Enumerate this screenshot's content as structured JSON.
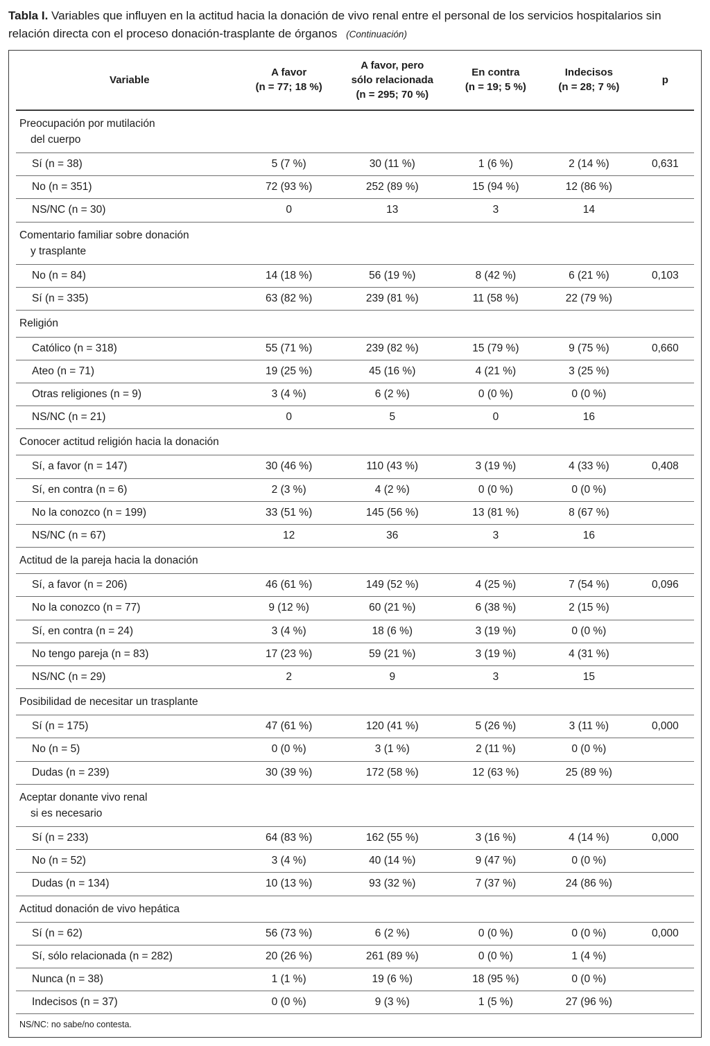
{
  "page": {
    "title_label": "Tabla I.",
    "title_text": "Variables que influyen en la actitud hacia la donación de vivo renal entre el personal de los servicios hospitalarios sin relación directa con el proceso donación-trasplante de órganos",
    "continuation": "(Continuación)",
    "footnote": "NS/NC: no sabe/no contesta."
  },
  "table": {
    "columns": [
      {
        "id": "variable",
        "lines": [
          "Variable"
        ]
      },
      {
        "id": "a-favor",
        "lines": [
          "A favor",
          "(n = 77; 18 %)"
        ]
      },
      {
        "id": "a-favor-relacionada",
        "lines": [
          "A favor, pero",
          "sólo relacionada",
          "(n = 295; 70 %)"
        ]
      },
      {
        "id": "en-contra",
        "lines": [
          "En contra",
          "(n = 19; 5 %)"
        ]
      },
      {
        "id": "indecisos",
        "lines": [
          "Indecisos",
          "(n = 28; 7 %)"
        ]
      },
      {
        "id": "p",
        "lines": [
          "p"
        ]
      }
    ],
    "sections": [
      {
        "header_lines": [
          "Preocupación por mutilación",
          "del cuerpo"
        ],
        "rows": [
          {
            "label": "Sí (n = 38)",
            "values": [
              "5 (7 %)",
              "30 (11 %)",
              "1 (6 %)",
              "2 (14 %)"
            ],
            "p": "0,631"
          },
          {
            "label": "No (n = 351)",
            "values": [
              "72 (93 %)",
              "252 (89 %)",
              "15 (94 %)",
              "12 (86 %)"
            ],
            "p": ""
          },
          {
            "label": "NS/NC (n = 30)",
            "values": [
              "0",
              "13",
              "3",
              "14"
            ],
            "p": ""
          }
        ]
      },
      {
        "header_lines": [
          "Comentario familiar sobre donación",
          "y trasplante"
        ],
        "rows": [
          {
            "label": "No (n = 84)",
            "values": [
              "14 (18 %)",
              "56 (19 %)",
              "8 (42 %)",
              "6 (21 %)"
            ],
            "p": "0,103"
          },
          {
            "label": "Sí (n = 335)",
            "values": [
              "63 (82 %)",
              "239 (81 %)",
              "11 (58 %)",
              "22 (79 %)"
            ],
            "p": ""
          }
        ]
      },
      {
        "header_lines": [
          "Religión"
        ],
        "rows": [
          {
            "label": "Católico (n = 318)",
            "values": [
              "55 (71 %)",
              "239 (82 %)",
              "15 (79 %)",
              "9 (75 %)"
            ],
            "p": "0,660"
          },
          {
            "label": "Ateo (n = 71)",
            "values": [
              "19 (25 %)",
              "45 (16 %)",
              "4 (21 %)",
              "3 (25 %)"
            ],
            "p": ""
          },
          {
            "label": "Otras religiones (n = 9)",
            "values": [
              "3 (4 %)",
              "6 (2 %)",
              "0 (0 %)",
              "0 (0 %)"
            ],
            "p": ""
          },
          {
            "label": "NS/NC (n = 21)",
            "values": [
              "0",
              "5",
              "0",
              "16"
            ],
            "p": ""
          }
        ]
      },
      {
        "header_lines": [
          "Conocer actitud religión hacia la donación"
        ],
        "rows": [
          {
            "label": "Sí, a favor (n = 147)",
            "values": [
              "30 (46 %)",
              "110 (43 %)",
              "3 (19 %)",
              "4 (33 %)"
            ],
            "p": "0,408"
          },
          {
            "label": "Sí, en contra (n = 6)",
            "values": [
              "2 (3 %)",
              "4 (2 %)",
              "0 (0 %)",
              "0 (0 %)"
            ],
            "p": ""
          },
          {
            "label": "No la conozco (n = 199)",
            "values": [
              "33 (51 %)",
              "145 (56 %)",
              "13 (81 %)",
              "8 (67 %)"
            ],
            "p": ""
          },
          {
            "label": "NS/NC (n = 67)",
            "values": [
              "12",
              "36",
              "3",
              "16"
            ],
            "p": ""
          }
        ]
      },
      {
        "header_lines": [
          "Actitud de la pareja hacia la donación"
        ],
        "rows": [
          {
            "label": "Sí, a favor (n = 206)",
            "values": [
              "46 (61 %)",
              "149 (52 %)",
              "4 (25 %)",
              "7 (54 %)"
            ],
            "p": "0,096"
          },
          {
            "label": "No la conozco (n = 77)",
            "values": [
              "9 (12 %)",
              "60 (21 %)",
              "6 (38 %)",
              "2 (15 %)"
            ],
            "p": ""
          },
          {
            "label": "Sí, en contra (n = 24)",
            "values": [
              "3 (4 %)",
              "18 (6 %)",
              "3 (19 %)",
              "0 (0 %)"
            ],
            "p": ""
          },
          {
            "label": "No tengo pareja (n = 83)",
            "values": [
              "17 (23 %)",
              "59 (21 %)",
              "3 (19 %)",
              "4 (31 %)"
            ],
            "p": ""
          },
          {
            "label": "NS/NC (n = 29)",
            "values": [
              "2",
              "9",
              "3",
              "15"
            ],
            "p": ""
          }
        ]
      },
      {
        "header_lines": [
          "Posibilidad de necesitar un trasplante"
        ],
        "rows": [
          {
            "label": "Sí (n = 175)",
            "values": [
              "47 (61 %)",
              "120 (41 %)",
              "5 (26 %)",
              "3 (11 %)"
            ],
            "p": "0,000"
          },
          {
            "label": "No (n = 5)",
            "values": [
              "0 (0 %)",
              "3 (1 %)",
              "2 (11 %)",
              "0 (0 %)"
            ],
            "p": ""
          },
          {
            "label": "Dudas (n = 239)",
            "values": [
              "30 (39 %)",
              "172 (58 %)",
              "12 (63 %)",
              "25 (89 %)"
            ],
            "p": ""
          }
        ]
      },
      {
        "header_lines": [
          "Aceptar donante vivo renal",
          "si es necesario"
        ],
        "rows": [
          {
            "label": "Sí (n = 233)",
            "values": [
              "64 (83 %)",
              "162 (55 %)",
              "3 (16 %)",
              "4 (14 %)"
            ],
            "p": "0,000"
          },
          {
            "label": "No (n = 52)",
            "values": [
              "3 (4 %)",
              "40 (14 %)",
              "9 (47 %)",
              "0 (0 %)"
            ],
            "p": ""
          },
          {
            "label": "Dudas (n = 134)",
            "values": [
              "10 (13 %)",
              "93 (32 %)",
              "7 (37 %)",
              "24 (86 %)"
            ],
            "p": ""
          }
        ]
      },
      {
        "header_lines": [
          "Actitud donación de vivo hepática"
        ],
        "rows": [
          {
            "label": "Sí (n = 62)",
            "values": [
              "56 (73 %)",
              "6 (2 %)",
              "0 (0 %)",
              "0 (0 %)"
            ],
            "p": "0,000"
          },
          {
            "label": "Sí, sólo relacionada (n = 282)",
            "values": [
              "20 (26 %)",
              "261 (89 %)",
              "0 (0 %)",
              "1 (4 %)"
            ],
            "p": ""
          },
          {
            "label": "Nunca (n = 38)",
            "values": [
              "1 (1 %)",
              "19 (6 %)",
              "18 (95 %)",
              "0 (0 %)"
            ],
            "p": ""
          },
          {
            "label": "Indecisos (n = 37)",
            "values": [
              "0 (0 %)",
              "9 (3 %)",
              "1 (5 %)",
              "27 (96 %)"
            ],
            "p": ""
          }
        ]
      }
    ]
  }
}
